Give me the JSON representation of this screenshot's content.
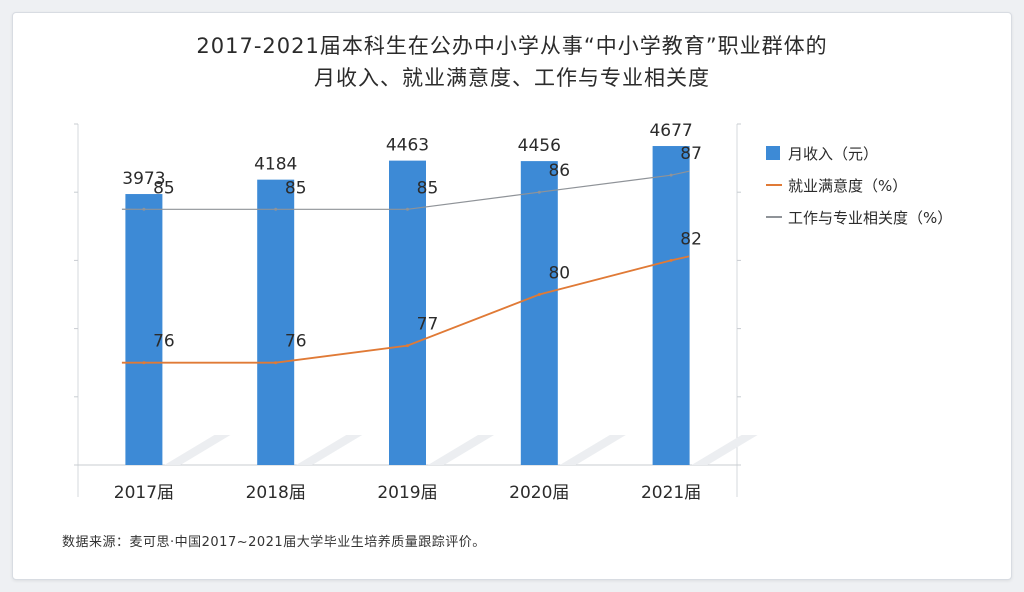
{
  "title_line1": "2017-2021届本科生在公办中小学从事“中小学教育”职业群体的",
  "title_line2": "月收入、就业满意度、工作与专业相关度",
  "source": "数据来源：麦可思·中国2017~2021届大学毕业生培养质量跟踪评价。",
  "chart_data": {
    "type": "bar",
    "categories": [
      "2017届",
      "2018届",
      "2019届",
      "2020届",
      "2021届"
    ],
    "series": [
      {
        "name": "月收入（元）",
        "type": "bar",
        "axis": "left",
        "values": [
          3973,
          4184,
          4463,
          4456,
          4677
        ],
        "color": "#3d8ad6"
      },
      {
        "name": "就业满意度（%）",
        "type": "line",
        "axis": "right",
        "values": [
          76,
          76,
          77,
          80,
          82
        ],
        "color": "#e07a36"
      },
      {
        "name": "工作与专业相关度（%）",
        "type": "line",
        "axis": "right",
        "values": [
          85,
          85,
          85,
          86,
          87
        ],
        "color": "#8f9398"
      }
    ],
    "title": "2017-2021届本科生在公办中小学从事“中小学教育”职业群体的月收入、就业满意度、工作与专业相关度",
    "ylim_left": [
      0,
      5000
    ],
    "ylim_right": [
      70,
      90
    ],
    "grid": true,
    "legend": "right"
  }
}
